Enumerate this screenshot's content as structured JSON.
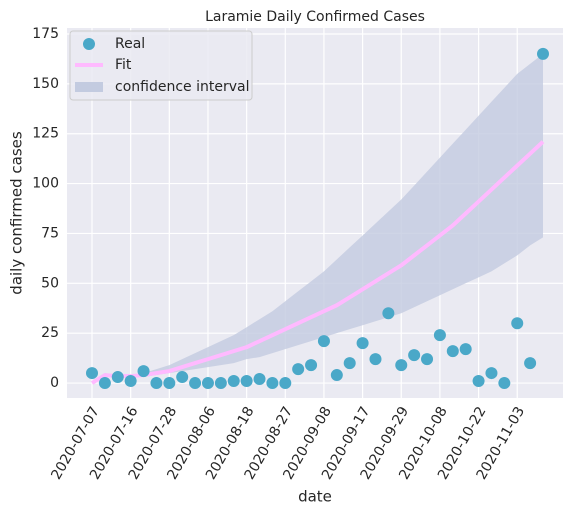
{
  "chart_data": {
    "type": "scatter",
    "title": "Laramie Daily Confirmed Cases",
    "xlabel": "date",
    "ylabel": "daily confirmed cases",
    "categories": [
      "2020-07-07",
      null,
      null,
      "2020-07-16",
      null,
      null,
      "2020-07-28",
      null,
      null,
      "2020-08-06",
      null,
      null,
      "2020-08-18",
      null,
      null,
      "2020-08-27",
      null,
      null,
      "2020-09-08",
      null,
      null,
      "2020-09-17",
      null,
      null,
      "2020-09-29",
      null,
      null,
      "2020-10-08",
      null,
      null,
      "2020-10-22",
      null,
      null,
      "2020-11-03",
      null,
      null
    ],
    "series": [
      {
        "name": "Real",
        "color": "#4aa8c8",
        "values": [
          5,
          0,
          3,
          1,
          6,
          0,
          0,
          3,
          0,
          0,
          0,
          1,
          1,
          2,
          0,
          0,
          7,
          9,
          21,
          4,
          10,
          20,
          12,
          35,
          9,
          14,
          12,
          24,
          16,
          17,
          1,
          5,
          0,
          30,
          10,
          165
        ]
      },
      {
        "name": "Fit",
        "color": "#ffbaff",
        "values": [
          0,
          4,
          3.5,
          3.5,
          4,
          5,
          6,
          8,
          10,
          12,
          14,
          16,
          18,
          21,
          24,
          27,
          30,
          33,
          36,
          39,
          43,
          47,
          51,
          55,
          59,
          64,
          69,
          74,
          79,
          85,
          91,
          97,
          103,
          109,
          115,
          121
        ]
      },
      {
        "name": "confidence interval",
        "color": "#c3cbe0",
        "upper": [
          0,
          5,
          4,
          4,
          5,
          7,
          9,
          12,
          15,
          18,
          21,
          24,
          28,
          32,
          36,
          41,
          46,
          51,
          56,
          62,
          68,
          74,
          80,
          86,
          92,
          99,
          106,
          113,
          120,
          127,
          134,
          141,
          148,
          155,
          160,
          165
        ],
        "lower": [
          0,
          3,
          3,
          3,
          3,
          4,
          5,
          6,
          7,
          8,
          9,
          10,
          12,
          13,
          15,
          17,
          19,
          21,
          23,
          25,
          27,
          29,
          31,
          33,
          35,
          38,
          41,
          44,
          47,
          50,
          53,
          56,
          60,
          64,
          69,
          73
        ]
      }
    ],
    "ylim": [
      -7.5,
      178
    ],
    "yticks": [
      0,
      25,
      50,
      75,
      100,
      125,
      150,
      175
    ],
    "grid": true,
    "legend": "upper left"
  }
}
